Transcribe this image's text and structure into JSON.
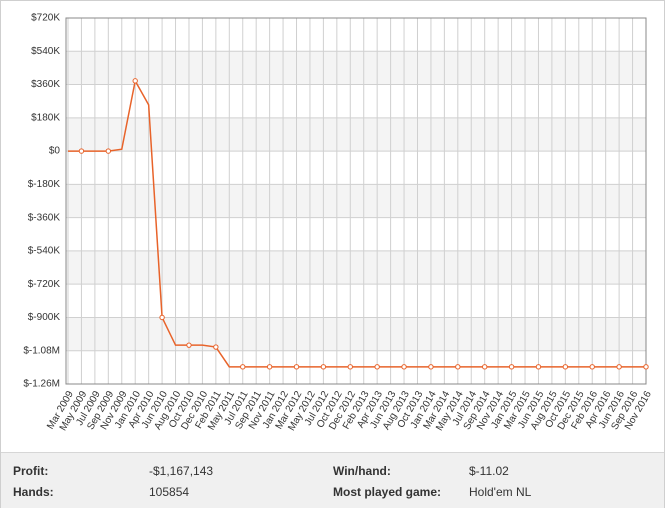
{
  "chart_data": {
    "type": "line",
    "categories": [
      "Mar 2009",
      "May 2009",
      "Jul 2009",
      "Sep 2009",
      "Nov 2009",
      "Jan 2010",
      "Apr 2010",
      "Jun 2010",
      "Aug 2010",
      "Oct 2010",
      "Dec 2010",
      "Feb 2011",
      "May 2011",
      "Jul 2011",
      "Sep 2011",
      "Nov 2011",
      "Jan 2012",
      "Mar 2012",
      "May 2012",
      "Jul 2012",
      "Oct 2012",
      "Dec 2012",
      "Feb 2013",
      "Apr 2013",
      "Jun 2013",
      "Aug 2013",
      "Oct 2013",
      "Jan 2014",
      "Mar 2014",
      "May 2014",
      "Jul 2014",
      "Sep 2014",
      "Nov 2014",
      "Jan 2015",
      "Mar 2015",
      "Jun 2015",
      "Aug 2015",
      "Oct 2015",
      "Dec 2015",
      "Feb 2016",
      "Apr 2016",
      "Jun 2016",
      "Sep 2016",
      "Nov 2016"
    ],
    "values": [
      0,
      0,
      0,
      0,
      10000,
      380000,
      250000,
      -900000,
      -1050000,
      -1050000,
      -1050000,
      -1060000,
      -1167143,
      -1167143,
      -1167143,
      -1167143,
      -1167143,
      -1167143,
      -1167143,
      -1167143,
      -1167143,
      -1167143,
      -1167143,
      -1167143,
      -1167143,
      -1167143,
      -1167143,
      -1167143,
      -1167143,
      -1167143,
      -1167143,
      -1167143,
      -1167143,
      -1167143,
      -1167143,
      -1167143,
      -1167143,
      -1167143,
      -1167143,
      -1167143,
      -1167143,
      -1167143,
      -1167143,
      -1167143
    ],
    "color": "#e8632a",
    "ylim": [
      -1260000,
      720000
    ],
    "yticks": [
      {
        "value": 720000,
        "label": "$720K"
      },
      {
        "value": 540000,
        "label": "$540K"
      },
      {
        "value": 360000,
        "label": "$360K"
      },
      {
        "value": 180000,
        "label": "$180K"
      },
      {
        "value": 0,
        "label": "$0"
      },
      {
        "value": -180000,
        "label": "$-180K"
      },
      {
        "value": -360000,
        "label": "$-360K"
      },
      {
        "value": -540000,
        "label": "$-540K"
      },
      {
        "value": -720000,
        "label": "$-720K"
      },
      {
        "value": -900000,
        "label": "$-900K"
      },
      {
        "value": -1080000,
        "label": "$-1.08M"
      },
      {
        "value": -1260000,
        "label": "$-1.26M"
      }
    ],
    "grid": true
  },
  "stats": [
    {
      "label": "Profit:",
      "value": "-$1,167,143"
    },
    {
      "label": "Win/hand:",
      "value": "$-11.02"
    },
    {
      "label": "Hands:",
      "value": "105854"
    },
    {
      "label": "Most played game:",
      "value": "Hold'em NL"
    }
  ]
}
